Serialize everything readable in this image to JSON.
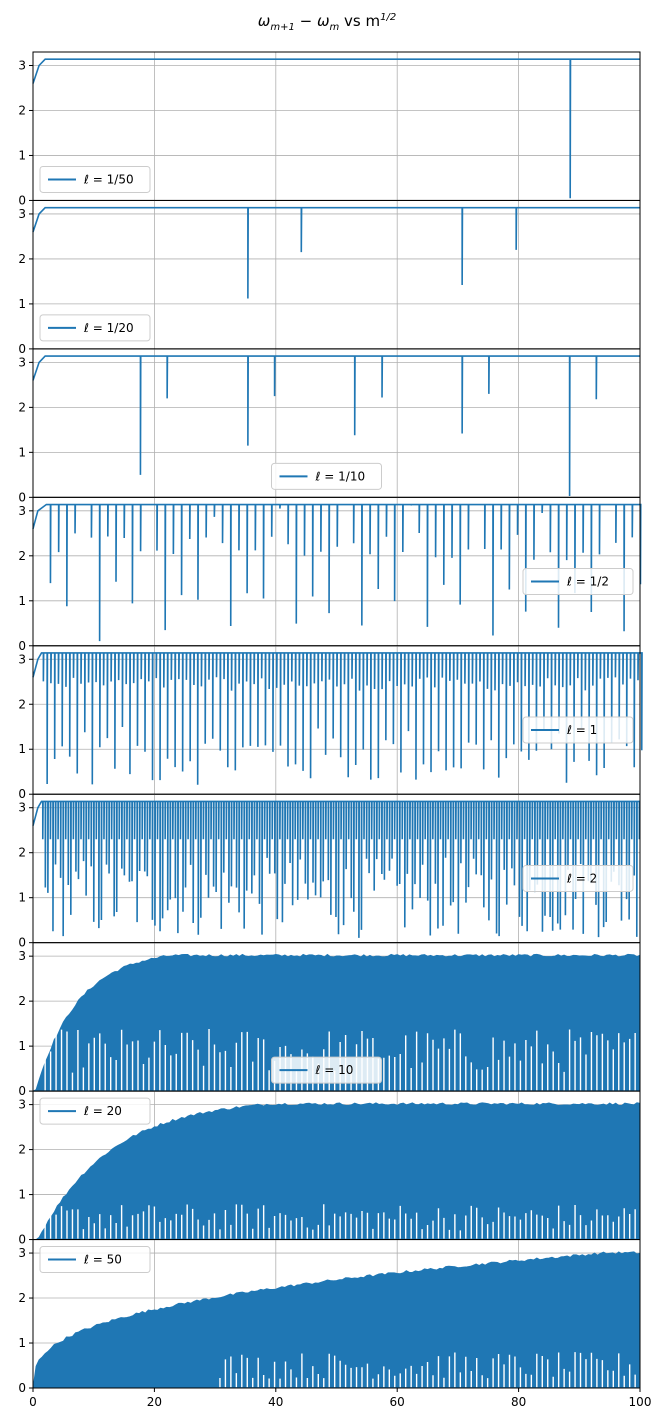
{
  "title": "ω_{m+1} − ω_m vs m^{1/2}",
  "chart_data": {
    "type": "line",
    "title": "ω_{m+1} − ω_m vs m^{1/2}",
    "xlabel": "",
    "ylabel": "",
    "xlim": [
      0,
      100
    ],
    "ylim": [
      0,
      3.3
    ],
    "x_ticks": [
      "0",
      "20",
      "40",
      "60",
      "80",
      "100"
    ],
    "y_ticks": [
      "0",
      "1",
      "2",
      "3"
    ],
    "grid": true,
    "line_color": "#1f77b4",
    "panels": [
      {
        "legend": "ℓ = 1/50",
        "legend_position": "lower-left",
        "plateau": 3.14,
        "dips": [
          [
            88.5,
            0.05
          ]
        ]
      },
      {
        "legend": "ℓ = 1/20",
        "legend_position": "lower-left",
        "plateau": 3.14,
        "dips": [
          [
            35.4,
            1.12
          ],
          [
            44.2,
            2.15
          ],
          [
            70.7,
            1.42
          ],
          [
            79.6,
            2.2
          ]
        ]
      },
      {
        "legend": "ℓ = 1/10",
        "legend_position": "lower-center",
        "plateau": 3.14,
        "dips": [
          [
            17.7,
            0.5
          ],
          [
            22.1,
            2.2
          ],
          [
            35.4,
            1.15
          ],
          [
            39.8,
            2.25
          ],
          [
            53.0,
            1.38
          ],
          [
            57.5,
            2.22
          ],
          [
            70.7,
            1.42
          ],
          [
            75.1,
            2.3
          ],
          [
            88.4,
            0.03
          ],
          [
            92.8,
            2.18
          ]
        ]
      },
      {
        "legend": "ℓ = 1/2",
        "legend_position": "center-right",
        "plateau": 3.14
      },
      {
        "legend": "ℓ = 1",
        "legend_position": "center-right",
        "plateau": 3.14
      },
      {
        "legend": "ℓ = 2",
        "legend_position": "center-right",
        "plateau": 3.14
      },
      {
        "legend": "ℓ = 10",
        "legend_position": "lower-center",
        "plateau": 3.14
      },
      {
        "legend": "ℓ = 20",
        "legend_position": "upper-left",
        "plateau": 3.14
      },
      {
        "legend": "ℓ = 50",
        "legend_position": "upper-left",
        "plateau": 3.0
      }
    ]
  }
}
